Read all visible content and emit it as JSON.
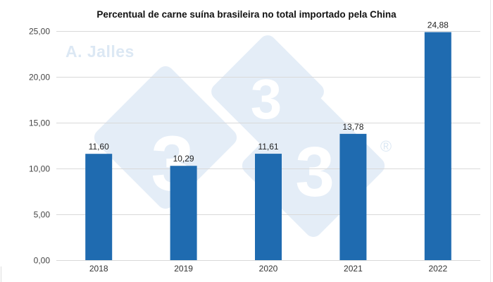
{
  "chart_data": {
    "type": "bar",
    "title": "Percentual de carne suína brasileira no total importado pela China",
    "categories": [
      "2018",
      "2019",
      "2020",
      "2021",
      "2022"
    ],
    "values": [
      11.6,
      10.29,
      11.61,
      13.78,
      24.88
    ],
    "value_labels": [
      "11,60",
      "10,29",
      "11,61",
      "13,78",
      "24,88"
    ],
    "xlabel": "",
    "ylabel": "",
    "ylim": [
      0,
      25
    ],
    "yticks": [
      0,
      5,
      10,
      15,
      20,
      25
    ],
    "ytick_labels": [
      "0,00",
      "5,00",
      "10,00",
      "15,00",
      "20,00",
      "25,00"
    ],
    "grid": true,
    "legend": null,
    "bar_color": "#1f6bb0"
  },
  "watermark": {
    "author": "A. Jalles",
    "logo_digits": [
      "3",
      "3",
      "3"
    ],
    "registered_mark": "®"
  }
}
